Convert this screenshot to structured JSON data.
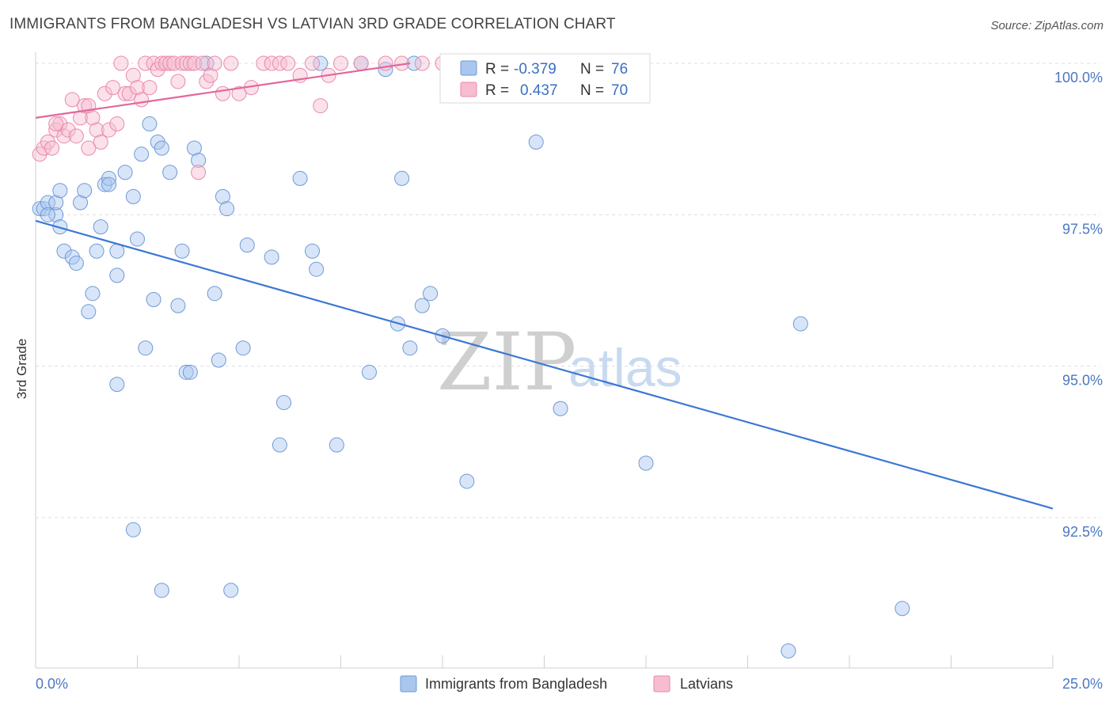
{
  "header": {
    "title": "IMMIGRANTS FROM BANGLADESH VS LATVIAN 3RD GRADE CORRELATION CHART",
    "source": "Source: ZipAtlas.com"
  },
  "watermark": {
    "zip": "ZIP",
    "atlas": "atlas"
  },
  "legend": {
    "rows": [
      {
        "r_label": "R =",
        "r_value": "-0.379",
        "n_label": "N =",
        "n_value": "76",
        "color": "#a9c6ef",
        "stroke": "#6f9ad6"
      },
      {
        "r_label": "R =",
        "r_value": "0.437",
        "n_label": "N =",
        "n_value": "70",
        "color": "#f7bcd0",
        "stroke": "#e98aab"
      }
    ]
  },
  "bottom_legend": [
    {
      "label": "Immigrants from Bangladesh",
      "color": "#a9c6ef",
      "stroke": "#6f9ad6"
    },
    {
      "label": "Latvians",
      "color": "#f7bcd0",
      "stroke": "#e98aab"
    }
  ],
  "chart_data": {
    "type": "scatter",
    "title": "IMMIGRANTS FROM BANGLADESH VS LATVIAN 3RD GRADE CORRELATION CHART",
    "xlabel": "",
    "ylabel": "3rd Grade",
    "xlim": [
      0,
      25
    ],
    "ylim": [
      90.0,
      100.4
    ],
    "x_tick_labels": [
      "0.0%",
      "25.0%"
    ],
    "y_ticks": [
      {
        "value": 100.0,
        "label": "100.0%"
      },
      {
        "value": 97.5,
        "label": "97.5%"
      },
      {
        "value": 95.0,
        "label": "95.0%"
      },
      {
        "value": 92.5,
        "label": "92.5%"
      }
    ],
    "grid": true,
    "series": [
      {
        "name": "Immigrants from Bangladesh",
        "color": "#6f9ad6",
        "trend": {
          "x": [
            0.0,
            25.0
          ],
          "y": [
            97.4,
            92.65
          ]
        },
        "points": [
          [
            0.1,
            97.6
          ],
          [
            0.2,
            97.6
          ],
          [
            0.3,
            97.7
          ],
          [
            0.5,
            97.5
          ],
          [
            0.6,
            97.3
          ],
          [
            0.3,
            97.5
          ],
          [
            0.5,
            97.7
          ],
          [
            0.6,
            97.9
          ],
          [
            0.7,
            96.9
          ],
          [
            0.9,
            96.8
          ],
          [
            1.0,
            96.7
          ],
          [
            1.1,
            97.7
          ],
          [
            1.2,
            97.9
          ],
          [
            1.4,
            96.2
          ],
          [
            1.5,
            96.9
          ],
          [
            1.6,
            97.3
          ],
          [
            1.3,
            95.9
          ],
          [
            1.7,
            98.0
          ],
          [
            1.8,
            98.1
          ],
          [
            2.0,
            96.9
          ],
          [
            1.8,
            98.0
          ],
          [
            2.0,
            96.5
          ],
          [
            2.2,
            98.2
          ],
          [
            2.4,
            97.8
          ],
          [
            2.5,
            97.1
          ],
          [
            2.6,
            98.5
          ],
          [
            2.7,
            95.3
          ],
          [
            2.8,
            99.0
          ],
          [
            2.9,
            96.1
          ],
          [
            3.0,
            98.7
          ],
          [
            3.1,
            98.6
          ],
          [
            3.3,
            98.2
          ],
          [
            3.5,
            96.0
          ],
          [
            3.6,
            96.9
          ],
          [
            3.7,
            94.9
          ],
          [
            3.8,
            94.9
          ],
          [
            3.9,
            98.6
          ],
          [
            4.0,
            98.4
          ],
          [
            4.2,
            100.0
          ],
          [
            4.4,
            96.2
          ],
          [
            4.5,
            95.1
          ],
          [
            4.6,
            97.8
          ],
          [
            4.7,
            97.6
          ],
          [
            4.8,
            91.3
          ],
          [
            5.1,
            95.3
          ],
          [
            5.2,
            97.0
          ],
          [
            5.8,
            96.8
          ],
          [
            6.1,
            94.4
          ],
          [
            6.5,
            98.1
          ],
          [
            6.8,
            96.9
          ],
          [
            6.9,
            96.6
          ],
          [
            7.0,
            100.0
          ],
          [
            7.4,
            93.7
          ],
          [
            8.0,
            100.0
          ],
          [
            8.2,
            94.9
          ],
          [
            8.6,
            99.9
          ],
          [
            8.9,
            95.7
          ],
          [
            9.0,
            98.1
          ],
          [
            9.2,
            95.3
          ],
          [
            9.5,
            96.0
          ],
          [
            9.7,
            96.2
          ],
          [
            9.3,
            100.0
          ],
          [
            10.0,
            95.5
          ],
          [
            10.6,
            93.1
          ],
          [
            11.0,
            100.0
          ],
          [
            11.7,
            100.0
          ],
          [
            12.3,
            98.7
          ],
          [
            12.9,
            94.3
          ],
          [
            15.0,
            93.4
          ],
          [
            18.5,
            90.3
          ],
          [
            18.8,
            95.7
          ],
          [
            21.3,
            91.0
          ],
          [
            3.1,
            91.3
          ],
          [
            2.4,
            92.3
          ],
          [
            2.0,
            94.7
          ],
          [
            6.0,
            93.7
          ]
        ]
      },
      {
        "name": "Latvians",
        "color": "#e98aab",
        "trend": {
          "x": [
            0.0,
            9.2
          ],
          "y": [
            99.1,
            100.0
          ]
        },
        "points": [
          [
            0.1,
            98.5
          ],
          [
            0.2,
            98.6
          ],
          [
            0.3,
            98.7
          ],
          [
            0.4,
            98.6
          ],
          [
            0.5,
            98.9
          ],
          [
            0.6,
            99.0
          ],
          [
            0.7,
            98.8
          ],
          [
            0.8,
            98.9
          ],
          [
            0.9,
            99.4
          ],
          [
            1.0,
            98.8
          ],
          [
            1.1,
            99.1
          ],
          [
            1.2,
            99.3
          ],
          [
            1.3,
            98.6
          ],
          [
            1.4,
            99.1
          ],
          [
            1.5,
            98.9
          ],
          [
            1.6,
            98.7
          ],
          [
            1.7,
            99.5
          ],
          [
            1.8,
            98.9
          ],
          [
            1.9,
            99.6
          ],
          [
            2.0,
            99.0
          ],
          [
            2.1,
            100.0
          ],
          [
            2.2,
            99.5
          ],
          [
            2.3,
            99.5
          ],
          [
            2.4,
            99.8
          ],
          [
            2.5,
            99.6
          ],
          [
            2.6,
            99.4
          ],
          [
            2.7,
            100.0
          ],
          [
            2.8,
            99.6
          ],
          [
            2.9,
            100.0
          ],
          [
            3.0,
            99.9
          ],
          [
            3.1,
            100.0
          ],
          [
            3.2,
            100.0
          ],
          [
            3.3,
            100.0
          ],
          [
            3.4,
            100.0
          ],
          [
            3.5,
            99.7
          ],
          [
            3.6,
            100.0
          ],
          [
            3.7,
            100.0
          ],
          [
            3.8,
            100.0
          ],
          [
            3.9,
            100.0
          ],
          [
            4.0,
            98.2
          ],
          [
            4.1,
            100.0
          ],
          [
            4.2,
            99.7
          ],
          [
            4.3,
            99.8
          ],
          [
            4.4,
            100.0
          ],
          [
            4.6,
            99.5
          ],
          [
            4.8,
            100.0
          ],
          [
            5.0,
            99.5
          ],
          [
            5.3,
            99.6
          ],
          [
            5.6,
            100.0
          ],
          [
            5.8,
            100.0
          ],
          [
            6.0,
            100.0
          ],
          [
            6.2,
            100.0
          ],
          [
            6.5,
            99.8
          ],
          [
            6.8,
            100.0
          ],
          [
            7.0,
            99.3
          ],
          [
            7.2,
            99.8
          ],
          [
            7.5,
            100.0
          ],
          [
            8.0,
            100.0
          ],
          [
            8.6,
            100.0
          ],
          [
            9.0,
            100.0
          ],
          [
            9.5,
            100.0
          ],
          [
            10.0,
            100.0
          ],
          [
            10.5,
            100.0
          ],
          [
            10.8,
            100.0
          ],
          [
            11.5,
            100.0
          ],
          [
            12.0,
            100.0
          ],
          [
            12.8,
            100.0
          ],
          [
            13.5,
            100.0
          ],
          [
            0.5,
            99.0
          ],
          [
            1.3,
            99.3
          ]
        ]
      }
    ]
  }
}
